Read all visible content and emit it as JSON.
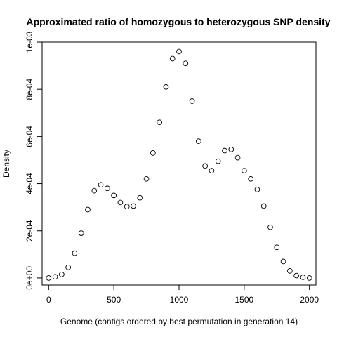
{
  "chart_data": {
    "type": "scatter",
    "title": "Approximated ratio of homozygous to heterozygous SNP density",
    "xlabel": "Genome (contigs ordered by best permutation in generation 14)",
    "ylabel": "Density",
    "xlim": [
      -50,
      2050
    ],
    "ylim": [
      -3e-05,
      0.001
    ],
    "x_ticks": [
      0,
      500,
      1000,
      1500,
      2000
    ],
    "x_tick_labels": [
      "0",
      "500",
      "1000",
      "1500",
      "2000"
    ],
    "y_ticks": [
      0,
      0.0002,
      0.0004,
      0.0006,
      0.0008,
      0.001
    ],
    "y_tick_labels": [
      "0e+00",
      "2e-04",
      "4e-04",
      "6e-04",
      "8e-04",
      "1e-03"
    ],
    "grid": false,
    "marker": "open-circle",
    "color": "#000000",
    "series": [
      {
        "x": [
          0,
          50,
          100,
          150,
          200,
          250,
          300,
          350,
          400,
          450,
          500,
          550,
          600,
          650,
          700,
          750,
          800,
          850,
          900,
          950,
          1000,
          1050,
          1100,
          1150,
          1200,
          1250,
          1300,
          1350,
          1400,
          1450,
          1500,
          1550,
          1600,
          1650,
          1700,
          1750,
          1800,
          1850,
          1900,
          1950,
          2000
        ],
        "y": [
          0.0,
          5e-06,
          1.5e-05,
          4.5e-05,
          0.000105,
          0.00019,
          0.00029,
          0.00037,
          0.000395,
          0.00038,
          0.00035,
          0.00032,
          0.000303,
          0.000305,
          0.00034,
          0.00042,
          0.00053,
          0.00066,
          0.00081,
          0.00093,
          0.00096,
          0.00091,
          0.00075,
          0.00058,
          0.000475,
          0.000455,
          0.000495,
          0.00054,
          0.000545,
          0.00051,
          0.000455,
          0.00042,
          0.000375,
          0.000305,
          0.000215,
          0.00013,
          7e-05,
          3e-05,
          1e-05,
          3e-06,
          0.0
        ]
      }
    ]
  }
}
